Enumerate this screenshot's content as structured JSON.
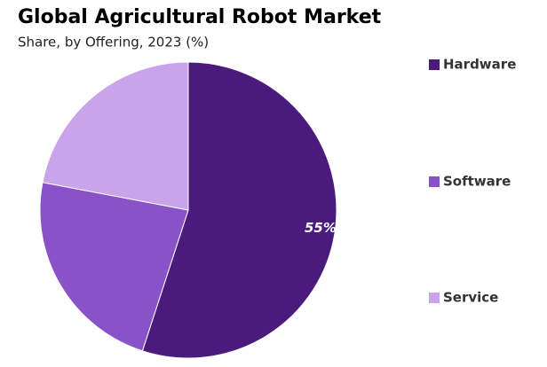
{
  "chart_data": {
    "type": "pie",
    "title": "Global Agricultural Robot Market",
    "subtitle": "Share, by Offering, 2023 (%)",
    "categories": [
      "Hardware",
      "Software",
      "Service"
    ],
    "values": [
      55,
      23,
      22
    ],
    "value_labels": [
      "55%",
      null,
      null
    ],
    "colors": [
      "#4a1a7c",
      "#8a52c9",
      "#c9a4ea"
    ],
    "legend": "right"
  }
}
